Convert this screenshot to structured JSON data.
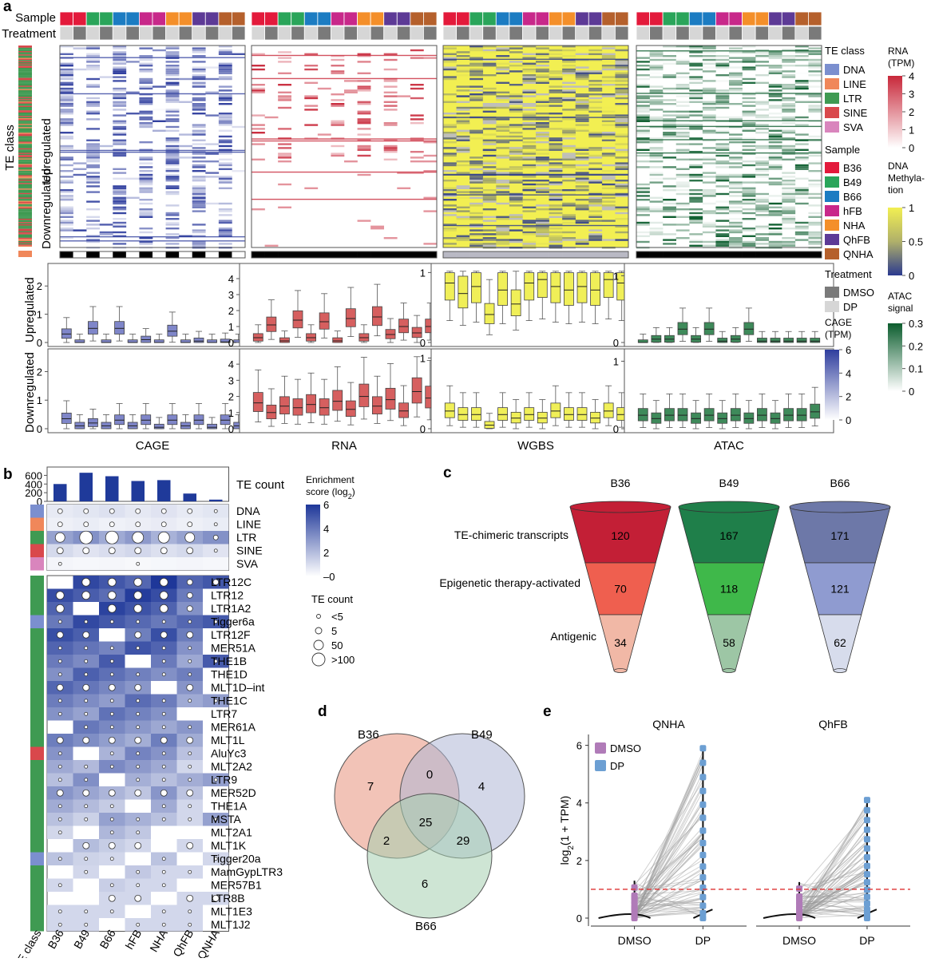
{
  "colors": {
    "DNA": "#7b8fcf",
    "LINE": "#f0875a",
    "LTR": "#3f9a52",
    "SINE": "#d9484c",
    "SVA": "#d985bd",
    "B36": "#e31a3b",
    "B49": "#2aa55a",
    "B66": "#1c7cc2",
    "hFB": "#c8288a",
    "NHA": "#f48f2a",
    "QhFB": "#5d3a96",
    "QNHA": "#b5602c",
    "DMSO": "#7a7a7a",
    "DP": "#d6d6d6",
    "cage": "#2f3e9e",
    "rna": "#c8283a",
    "wgbs_hi": "#f2ef52",
    "wgbs_lo": "#2b3a8f",
    "atac": "#0c5d2e"
  },
  "panel_a": {
    "label": "a",
    "row_labels": {
      "sample": "Sample",
      "treatment": "Treatment",
      "te_class": "TE class"
    },
    "group_labels": {
      "upregulated": "Upregulated",
      "downregulated": "Downregulated"
    },
    "box_row_labels": {
      "upregulated": "Upregulated",
      "downregulated": "Downregulated"
    },
    "sample_order": [
      "B36",
      "B36",
      "B49",
      "B49",
      "B66",
      "B66",
      "hFB",
      "hFB",
      "NHA",
      "NHA",
      "QhFB",
      "QhFB",
      "QNHA",
      "QNHA"
    ],
    "treatment_order": [
      "DP",
      "DMSO",
      "DP",
      "DMSO",
      "DP",
      "DMSO",
      "DP",
      "DMSO",
      "DP",
      "DMSO",
      "DP",
      "DMSO",
      "DP",
      "DMSO"
    ],
    "assays": [
      "CAGE",
      "RNA",
      "WGBS",
      "ATAC"
    ],
    "box_axes": {
      "CAGE": {
        "up_ticks": [
          "0",
          "1",
          "2"
        ],
        "down_ticks": [
          "0",
          "1",
          "2"
        ]
      },
      "RNA": {
        "up_ticks": [
          "0",
          "1",
          "2",
          "3",
          "4"
        ],
        "down_ticks": [
          "0",
          "1",
          "2",
          "3",
          "4"
        ]
      },
      "WGBS": {
        "up_ticks": [
          "0",
          "1"
        ],
        "down_ticks": [
          "0",
          "1"
        ]
      },
      "ATAC": {
        "up_ticks": [
          "0",
          "1"
        ],
        "down_ticks": [
          "0",
          "1"
        ]
      }
    },
    "box_medians": {
      "CAGE_up": [
        0.3,
        0.0,
        0.5,
        0.0,
        0.5,
        0.0,
        0.1,
        0.0,
        0.4,
        0.0,
        0.05,
        0.0,
        0.02,
        0.0
      ],
      "CAGE_down": [
        0.35,
        0.1,
        0.2,
        0.1,
        0.3,
        0.1,
        0.3,
        0.05,
        0.3,
        0.1,
        0.3,
        0.05,
        0.3,
        0.1
      ],
      "RNA_up": [
        0.3,
        1.1,
        0.1,
        1.4,
        0.3,
        1.3,
        0.1,
        1.5,
        0.3,
        1.6,
        0.5,
        1.0,
        0.6,
        1.0
      ],
      "RNA_down": [
        1.6,
        1.0,
        1.4,
        1.3,
        1.5,
        1.3,
        1.7,
        1.2,
        2.0,
        1.4,
        1.8,
        1.1,
        2.3,
        1.9
      ],
      "WGBS_up": [
        0.85,
        0.7,
        0.8,
        0.4,
        0.75,
        0.55,
        0.85,
        0.9,
        0.8,
        0.75,
        0.8,
        0.75,
        0.9,
        0.85
      ],
      "WGBS_down": [
        0.25,
        0.2,
        0.2,
        0.05,
        0.2,
        0.15,
        0.2,
        0.15,
        0.25,
        0.2,
        0.2,
        0.15,
        0.25,
        0.2
      ],
      "ATAC_up": [
        0.0,
        0.05,
        0.05,
        0.2,
        0.05,
        0.2,
        0.02,
        0.05,
        0.2,
        0.02,
        0.02,
        0.02,
        0.02,
        0.02
      ],
      "ATAC_down": [
        0.2,
        0.15,
        0.2,
        0.2,
        0.15,
        0.2,
        0.15,
        0.2,
        0.15,
        0.2,
        0.15,
        0.2,
        0.2,
        0.25
      ]
    },
    "legend": {
      "te_class_title": "TE class",
      "te_classes": [
        "DNA",
        "LINE",
        "LTR",
        "SINE",
        "SVA"
      ],
      "sample_title": "Sample",
      "samples": [
        "B36",
        "B49",
        "B66",
        "hFB",
        "NHA",
        "QhFB",
        "QNHA"
      ],
      "treatment_title": "Treatment",
      "treatments": [
        "DMSO",
        "DP"
      ],
      "rna_title_1": "RNA",
      "rna_title_2": "(TPM)",
      "rna_ticks": [
        "4",
        "3",
        "2",
        "1",
        "0"
      ],
      "dna_title_1": "DNA",
      "dna_title_2": "Methyla-",
      "dna_title_3": "tion",
      "dna_ticks": [
        "1",
        "0.5",
        "0"
      ],
      "cage_title_1": "CAGE",
      "cage_title_2": "(TPM)",
      "cage_ticks": [
        "6",
        "4",
        "2",
        "0"
      ],
      "atac_title_1": "ATAC",
      "atac_title_2": "signal",
      "atac_ticks": [
        "0.3",
        "0.2",
        "0.1",
        "0"
      ]
    }
  },
  "panel_b": {
    "label": "b",
    "count_title": "TE count",
    "count_ticks": [
      "600",
      "400",
      "200",
      "0"
    ],
    "samples": [
      "B36",
      "B49",
      "B66",
      "hFB",
      "NHA",
      "QhFB",
      "QNHA"
    ],
    "te_counts": [
      400,
      660,
      580,
      470,
      490,
      180,
      40
    ],
    "class_rows": [
      "DNA",
      "LINE",
      "LTR",
      "SINE",
      "SVA"
    ],
    "class_row_colors": [
      "DNA",
      "LINE",
      "LTR",
      "SINE",
      "SVA"
    ],
    "family_rows": [
      "LTR12C",
      "LTR12",
      "LTR1A2",
      "Tigger6a",
      "LTR12F",
      "MER51A",
      "THE1B",
      "THE1D",
      "MLT1D–int",
      "THE1C",
      "LTR7",
      "MER61A",
      "MLT1L",
      "AluYc3",
      "MLT2A2",
      "LTR9",
      "MER52D",
      "THE1A",
      "MSTA",
      "MLT2A1",
      "MLT1K",
      "Tigger20a",
      "MamGypLTR3",
      "MER57B1",
      "LTR8B",
      "MLT1E3",
      "MLT1J2"
    ],
    "family_classes": [
      "LTR",
      "LTR",
      "LTR",
      "DNA",
      "LTR",
      "LTR",
      "LTR",
      "LTR",
      "LTR",
      "LTR",
      "LTR",
      "LTR",
      "LTR",
      "SINE",
      "LTR",
      "LTR",
      "LTR",
      "LTR",
      "LTR",
      "LTR",
      "LTR",
      "DNA",
      "LTR",
      "LTR",
      "LTR",
      "LTR",
      "LTR"
    ],
    "te_class_axis_label": "TE class",
    "enrich_title_1": "Enrichment",
    "enrich_title_2": "score (log",
    "enrich_title_sub": "2",
    "enrich_title_end": ")",
    "enrich_ticks": [
      "6",
      "4",
      "2",
      "0"
    ],
    "size_title": "TE count",
    "size_labels": [
      "<5",
      "5",
      "50",
      ">100"
    ]
  },
  "panel_c": {
    "label": "c",
    "tumors": [
      "B36",
      "B49",
      "B66"
    ],
    "level_labels": [
      "TE-chimeric transcripts",
      "Epigenetic therapy-activated",
      "Antigenic"
    ],
    "values": [
      [
        120,
        70,
        34
      ],
      [
        167,
        118,
        58
      ],
      [
        171,
        121,
        62
      ]
    ]
  },
  "panel_d": {
    "label": "d",
    "sets": [
      "B36",
      "B49",
      "B66"
    ],
    "only_B36": "7",
    "B36_B49": "0",
    "only_B49": "4",
    "all_three": "25",
    "B36_B66": "2",
    "B49_B66": "29",
    "only_B66": "6"
  },
  "panel_e": {
    "label": "e",
    "ylabel_1": "log",
    "ylabel_sub": "2",
    "ylabel_2": "(1 + TPM)",
    "y_ticks": [
      "0",
      "2",
      "4",
      "6"
    ],
    "threshold": 1,
    "legend": [
      "DMSO",
      "DP"
    ],
    "legend_colors": [
      "#b07bb8",
      "#6c9fd3"
    ],
    "panels": [
      {
        "title": "QNHA",
        "xticks": [
          "DMSO",
          "DP"
        ],
        "dmso_max": 1.3,
        "dp_max": 5.9
      },
      {
        "title": "QhFB",
        "xticks": [
          "DMSO",
          "DP"
        ],
        "dmso_max": 1.25,
        "dp_max": 4.1
      }
    ]
  }
}
